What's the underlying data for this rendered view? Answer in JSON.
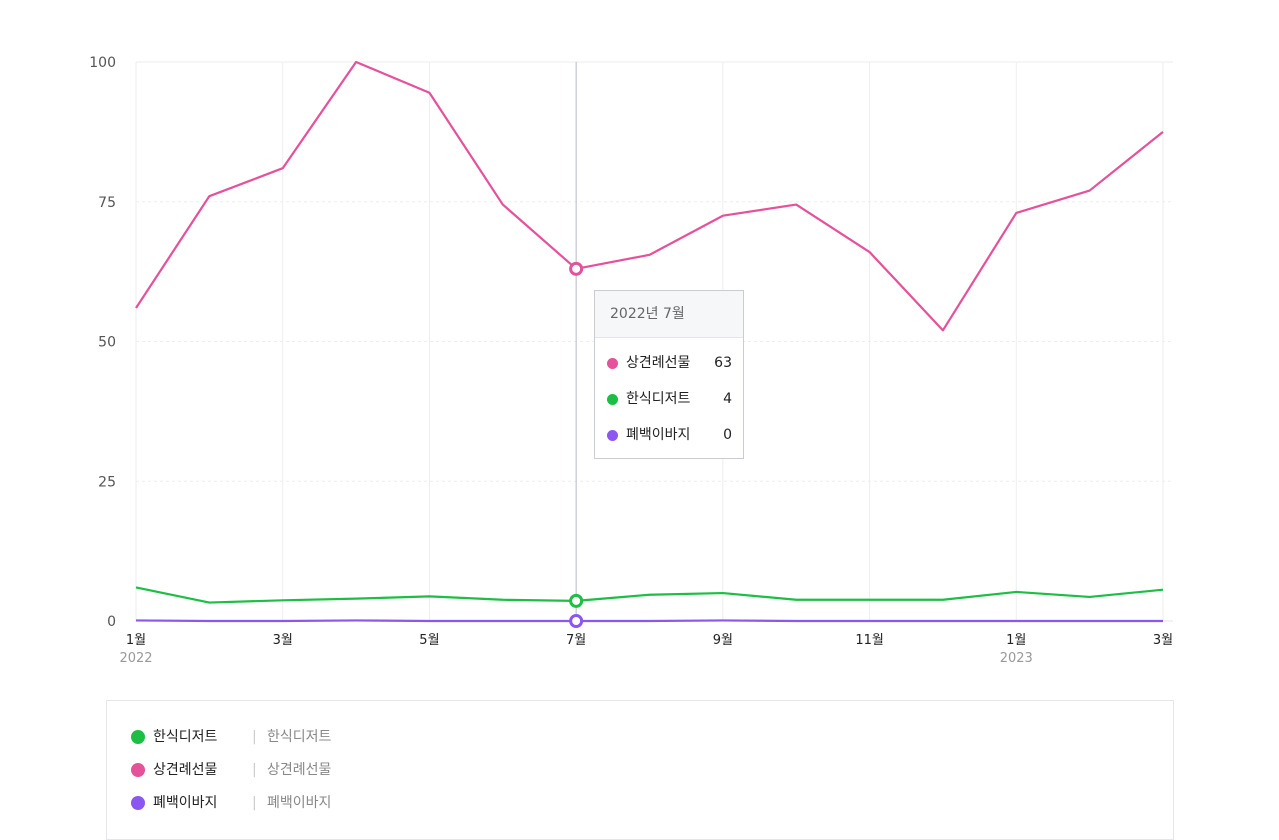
{
  "chart_data": {
    "type": "line",
    "categories": [
      "2022-01",
      "2022-02",
      "2022-03",
      "2022-04",
      "2022-05",
      "2022-06",
      "2022-07",
      "2022-08",
      "2022-09",
      "2022-10",
      "2022-11",
      "2022-12",
      "2023-01",
      "2023-02",
      "2023-03"
    ],
    "x_tick_labels": [
      {
        "index": 0,
        "label": "1월",
        "year": "2022"
      },
      {
        "index": 2,
        "label": "3월",
        "year": ""
      },
      {
        "index": 4,
        "label": "5월",
        "year": ""
      },
      {
        "index": 6,
        "label": "7월",
        "year": ""
      },
      {
        "index": 8,
        "label": "9월",
        "year": ""
      },
      {
        "index": 10,
        "label": "11월",
        "year": ""
      },
      {
        "index": 12,
        "label": "1월",
        "year": "2023"
      },
      {
        "index": 14,
        "label": "3월",
        "year": ""
      }
    ],
    "y_ticks": [
      "0",
      "25",
      "50",
      "75",
      "100"
    ],
    "ylim": [
      0,
      100
    ],
    "grid": true,
    "series": [
      {
        "name": "상견례선물",
        "color": "#e5519a",
        "values": [
          56,
          76,
          81,
          100,
          94.5,
          74.5,
          63,
          65.5,
          72.5,
          74.5,
          66,
          52,
          73,
          77,
          87.5
        ]
      },
      {
        "name": "한식디저트",
        "color": "#1cbf43",
        "values": [
          6,
          3.3,
          3.7,
          4,
          4.4,
          3.8,
          3.6,
          4.7,
          5,
          3.8,
          3.8,
          3.8,
          5.2,
          4.3,
          5.6
        ]
      },
      {
        "name": "폐백이바지",
        "color": "#8b57f0",
        "values": [
          0.1,
          0.0,
          0.0,
          0.1,
          0.0,
          0.0,
          0.0,
          0.0,
          0.1,
          0.0,
          0.0,
          0.0,
          0.0,
          0.0,
          0.0
        ]
      }
    ],
    "hover_index": 6,
    "legend_placement": "bottom"
  },
  "tooltip": {
    "title": "2022년 7월",
    "rows": [
      {
        "name": "상견례선물",
        "value": "63",
        "color": "#e5519a"
      },
      {
        "name": "한식디저트",
        "value": "4",
        "color": "#1cbf43"
      },
      {
        "name": "폐백이바지",
        "value": "0",
        "color": "#8b57f0"
      }
    ]
  },
  "legend": {
    "separator": "|",
    "items": [
      {
        "name": "한식디저트",
        "sub": "한식디저트",
        "color": "#1cbf43"
      },
      {
        "name": "상견례선물",
        "sub": "상견례선물",
        "color": "#e5519a"
      },
      {
        "name": "폐백이바지",
        "sub": "폐백이바지",
        "color": "#8b57f0"
      }
    ]
  }
}
